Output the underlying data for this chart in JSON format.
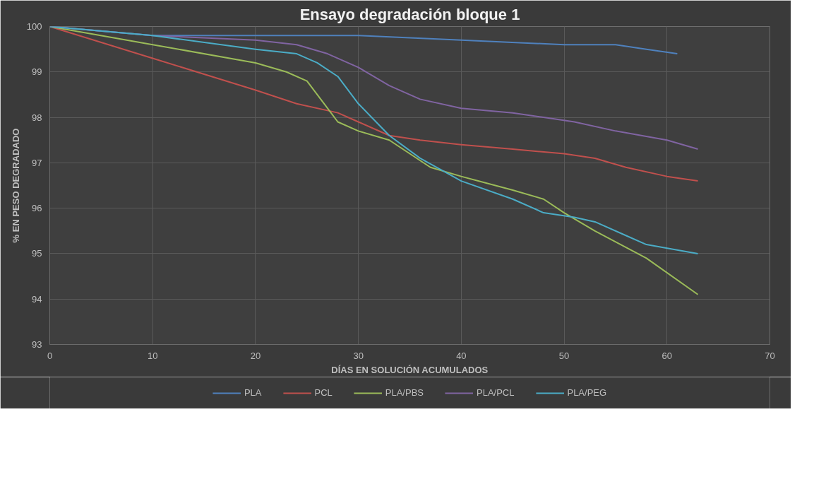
{
  "chart_data": {
    "type": "line",
    "title": "Ensayo degradación bloque 1",
    "xlabel": "DÍAS EN SOLUCIÓN ACUMULADOS",
    "ylabel": "% EN PESO DEGRADADO",
    "xlim": [
      0,
      70
    ],
    "xticks": [
      0,
      10,
      20,
      30,
      40,
      50,
      60,
      70
    ],
    "ylim": [
      93,
      100
    ],
    "yticks": [
      93,
      94,
      95,
      96,
      97,
      98,
      99,
      100
    ],
    "grid": true,
    "legend": "bottom",
    "marker": "none",
    "line_style": "solid",
    "series": [
      {
        "name": "PLA",
        "color": "#4f81bd",
        "x": [
          0,
          10,
          20,
          30,
          40,
          50,
          55,
          58,
          61
        ],
        "values": [
          100,
          99.8,
          99.8,
          99.8,
          99.7,
          99.6,
          99.6,
          99.5,
          99.4
        ]
      },
      {
        "name": "PCL",
        "color": "#c0504d",
        "x": [
          0,
          10,
          20,
          24,
          28,
          30,
          33,
          36,
          40,
          45,
          50,
          53,
          56,
          60,
          63
        ],
        "values": [
          100,
          99.3,
          98.6,
          98.3,
          98.1,
          97.9,
          97.6,
          97.5,
          97.4,
          97.3,
          97.2,
          97.1,
          96.9,
          96.7,
          96.6
        ]
      },
      {
        "name": "PLA/PBS",
        "color": "#9bbb59",
        "x": [
          0,
          10,
          20,
          23,
          25,
          27,
          28,
          30,
          33,
          37,
          40,
          45,
          48,
          50,
          53,
          58,
          63
        ],
        "values": [
          100,
          99.6,
          99.2,
          99.0,
          98.8,
          98.2,
          97.9,
          97.7,
          97.5,
          96.9,
          96.7,
          96.4,
          96.2,
          95.9,
          95.5,
          94.9,
          94.1
        ]
      },
      {
        "name": "PLA/PCL",
        "color": "#8064a2",
        "x": [
          0,
          10,
          20,
          24,
          27,
          30,
          33,
          36,
          40,
          45,
          48,
          51,
          55,
          60,
          63
        ],
        "values": [
          100,
          99.8,
          99.7,
          99.6,
          99.4,
          99.1,
          98.7,
          98.4,
          98.2,
          98.1,
          98.0,
          97.9,
          97.7,
          97.5,
          97.3
        ]
      },
      {
        "name": "PLA/PEG",
        "color": "#4bacc6",
        "x": [
          0,
          10,
          20,
          24,
          26,
          28,
          30,
          33,
          36,
          40,
          45,
          48,
          51,
          53,
          56,
          58,
          63
        ],
        "values": [
          100,
          99.8,
          99.5,
          99.4,
          99.2,
          98.9,
          98.3,
          97.6,
          97.1,
          96.6,
          96.2,
          95.9,
          95.8,
          95.7,
          95.4,
          95.2,
          95.0
        ]
      }
    ]
  }
}
